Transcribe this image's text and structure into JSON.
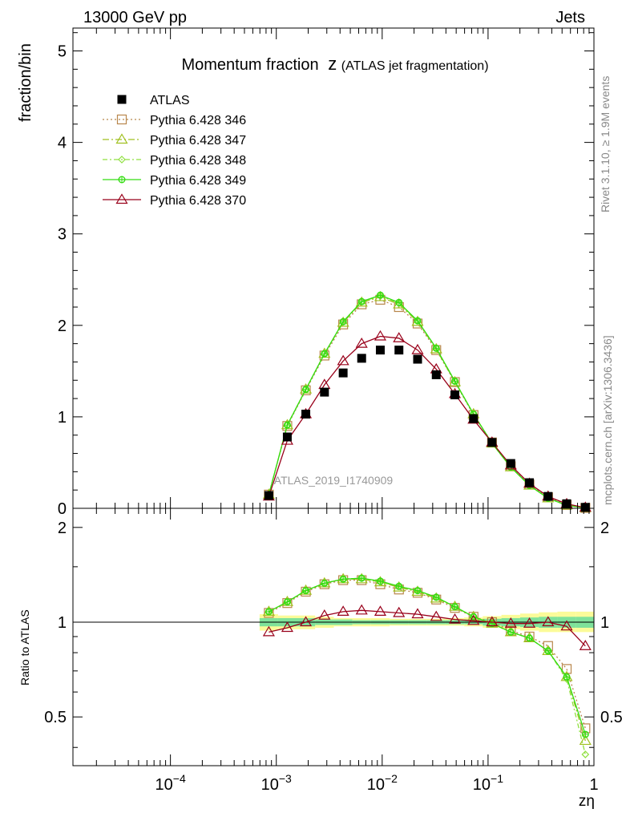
{
  "header": {
    "energy_label": "13000 GeV pp",
    "category_label": "Jets"
  },
  "side_text": {
    "rivet": "Rivet 3.1.10, ≥ 1.9M events",
    "mcplots": "mcplots.cern.ch [arXiv:1306.3436]"
  },
  "chart_data": {
    "type": "line",
    "title": "Momentum fraction",
    "title_symbol": "z",
    "title_sub": "(ATLAS jet fragmentation)",
    "xlabel": "zη",
    "ylabel": "fraction/bin",
    "ratio_ylabel": "Ratio to ATLAS",
    "watermark": "ATLAS_2019_I1740909",
    "x_scale": "log",
    "xlim": [
      1.2e-05,
      1
    ],
    "ylim": [
      0,
      5.25
    ],
    "ratio_ylim": [
      0.35,
      2.3
    ],
    "x_tick_labels": [
      {
        "x": 0.0001,
        "base": "10",
        "exp": "−4"
      },
      {
        "x": 0.001,
        "base": "10",
        "exp": "−3"
      },
      {
        "x": 0.01,
        "base": "10",
        "exp": "−2"
      },
      {
        "x": 0.1,
        "base": "10",
        "exp": "−1"
      },
      {
        "x": 1,
        "base": "1",
        "exp": ""
      }
    ],
    "y_tick_labels": [
      "0",
      "1",
      "2",
      "3",
      "4",
      "5"
    ],
    "ratio_tick_labels": [
      "0.5",
      "1",
      "2"
    ],
    "legend_position": "top-left",
    "x": [
      0.00085,
      0.00127,
      0.0019,
      0.00285,
      0.00428,
      0.0064,
      0.0096,
      0.0144,
      0.0216,
      0.0324,
      0.0486,
      0.0729,
      0.109,
      0.164,
      0.246,
      0.369,
      0.553,
      0.83
    ],
    "band": {
      "stat_low": [
        0.97,
        0.97,
        0.97,
        0.98,
        0.98,
        0.985,
        0.985,
        0.985,
        0.985,
        0.985,
        0.985,
        0.985,
        0.975,
        0.97,
        0.965,
        0.96,
        0.96,
        0.96
      ],
      "stat_high": [
        1.03,
        1.03,
        1.03,
        1.02,
        1.02,
        1.015,
        1.015,
        1.015,
        1.015,
        1.015,
        1.015,
        1.02,
        1.025,
        1.03,
        1.035,
        1.04,
        1.04,
        1.04
      ],
      "tot_low": [
        0.94,
        0.95,
        0.95,
        0.96,
        0.97,
        0.97,
        0.97,
        0.975,
        0.975,
        0.975,
        0.975,
        0.97,
        0.96,
        0.95,
        0.94,
        0.93,
        0.93,
        0.93
      ],
      "tot_high": [
        1.06,
        1.05,
        1.05,
        1.04,
        1.03,
        1.03,
        1.03,
        1.025,
        1.025,
        1.025,
        1.03,
        1.035,
        1.045,
        1.055,
        1.065,
        1.075,
        1.08,
        1.08
      ],
      "stat_color": "#7fe29a",
      "tot_color": "#fbfb99"
    },
    "data": {
      "name": "ATLAS",
      "color": "#000000",
      "values": [
        0.14,
        0.78,
        1.03,
        1.27,
        1.48,
        1.64,
        1.73,
        1.73,
        1.63,
        1.46,
        1.24,
        0.98,
        0.72,
        0.49,
        0.28,
        0.13,
        0.05,
        0.01
      ]
    },
    "series": [
      {
        "name": "Pythia 6.428 346",
        "color": "#b8864b",
        "dash": "2,3",
        "marker": "square",
        "values": [
          0.15,
          0.9,
          1.29,
          1.67,
          2.01,
          2.23,
          2.28,
          2.2,
          2.02,
          1.73,
          1.38,
          1.02,
          0.72,
          0.46,
          0.26,
          0.12,
          0.037,
          0.005
        ],
        "ratio": [
          1.07,
          1.15,
          1.25,
          1.32,
          1.36,
          1.36,
          1.32,
          1.27,
          1.24,
          1.18,
          1.11,
          1.04,
          1.0,
          0.94,
          0.9,
          0.84,
          0.71,
          0.46
        ]
      },
      {
        "name": "Pythia 6.428 347",
        "color": "#a0c020",
        "dash": "8,3,2,3",
        "marker": "triangle",
        "values": [
          0.15,
          0.91,
          1.3,
          1.69,
          2.03,
          2.25,
          2.31,
          2.23,
          2.04,
          1.74,
          1.38,
          1.03,
          0.71,
          0.45,
          0.25,
          0.11,
          0.034,
          0.004
        ],
        "ratio": [
          1.08,
          1.16,
          1.26,
          1.33,
          1.37,
          1.37,
          1.34,
          1.29,
          1.25,
          1.19,
          1.12,
          1.04,
          0.99,
          0.93,
          0.89,
          0.81,
          0.67,
          0.42
        ]
      },
      {
        "name": "Pythia 6.428 348",
        "color": "#90e040",
        "dash": "6,3,2,3",
        "marker": "diamond",
        "values": [
          0.15,
          0.91,
          1.3,
          1.69,
          2.04,
          2.26,
          2.32,
          2.24,
          2.05,
          1.75,
          1.39,
          1.03,
          0.71,
          0.45,
          0.25,
          0.11,
          0.033,
          0.003
        ],
        "ratio": [
          1.08,
          1.16,
          1.26,
          1.33,
          1.37,
          1.38,
          1.34,
          1.3,
          1.26,
          1.2,
          1.12,
          1.04,
          0.99,
          0.93,
          0.89,
          0.81,
          0.66,
          0.38
        ]
      },
      {
        "name": "Pythia 6.428 349",
        "color": "#33dd11",
        "dash": "",
        "marker": "circle",
        "values": [
          0.15,
          0.91,
          1.3,
          1.69,
          2.04,
          2.26,
          2.33,
          2.25,
          2.05,
          1.75,
          1.39,
          1.03,
          0.71,
          0.45,
          0.25,
          0.11,
          0.033,
          0.004
        ],
        "ratio": [
          1.08,
          1.16,
          1.26,
          1.33,
          1.37,
          1.38,
          1.35,
          1.3,
          1.26,
          1.2,
          1.12,
          1.04,
          0.99,
          0.93,
          0.89,
          0.81,
          0.67,
          0.44
        ]
      },
      {
        "name": "Pythia 6.428 370",
        "color": "#99001a",
        "dash": "",
        "marker": "triangle",
        "values": [
          0.13,
          0.74,
          1.03,
          1.35,
          1.61,
          1.8,
          1.88,
          1.86,
          1.73,
          1.52,
          1.25,
          0.97,
          0.72,
          0.47,
          0.27,
          0.13,
          0.048,
          0.008
        ],
        "ratio": [
          0.93,
          0.96,
          1.0,
          1.05,
          1.08,
          1.09,
          1.08,
          1.07,
          1.06,
          1.04,
          1.02,
          1.01,
          1.0,
          0.99,
          0.99,
          1.0,
          0.97,
          0.84
        ]
      }
    ]
  }
}
